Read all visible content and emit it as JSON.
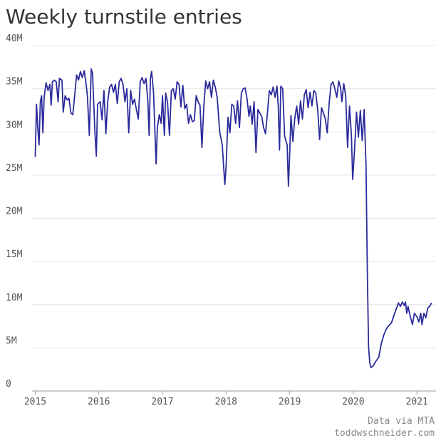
{
  "chart_data": {
    "type": "line",
    "title": "Weekly turnstile entries",
    "annotations": [
      "Data via MTA",
      "toddwschneider.com"
    ],
    "color": "#2b2b9c",
    "xlim": [
      2014.95,
      2021.3
    ],
    "xticks": [
      2015,
      2016,
      2017,
      2018,
      2019,
      2020,
      2021
    ],
    "ylim": [
      0,
      40000000
    ],
    "yticks": [
      0,
      {
        "value": 5000000,
        "label": "5M"
      },
      {
        "value": 10000000,
        "label": "10M"
      },
      {
        "value": 15000000,
        "label": "15M"
      },
      {
        "value": 20000000,
        "label": "20M"
      },
      {
        "value": 25000000,
        "label": "25M"
      },
      {
        "value": 30000000,
        "label": "30M"
      },
      {
        "value": 35000000,
        "label": "35M"
      },
      {
        "value": 40000000,
        "label": "40M"
      }
    ],
    "grid": true,
    "x": [
      2015.0,
      2015.02,
      2015.04,
      2015.06,
      2015.08,
      2015.1,
      2015.12,
      2015.14,
      2015.17,
      2015.2,
      2015.23,
      2015.25,
      2015.27,
      2015.3,
      2015.33,
      2015.36,
      2015.38,
      2015.42,
      2015.44,
      2015.47,
      2015.5,
      2015.53,
      2015.56,
      2015.59,
      2015.62,
      2015.65,
      2015.68,
      2015.71,
      2015.74,
      2015.77,
      2015.8,
      2015.82,
      2015.85,
      2015.88,
      2015.9,
      2015.94,
      2015.96,
      2015.98,
      2016.02,
      2016.05,
      2016.08,
      2016.11,
      2016.14,
      2016.17,
      2016.2,
      2016.23,
      2016.26,
      2016.29,
      2016.32,
      2016.35,
      2016.38,
      2016.41,
      2016.44,
      2016.47,
      2016.5,
      2016.53,
      2016.56,
      2016.59,
      2016.62,
      2016.65,
      2016.68,
      2016.71,
      2016.74,
      2016.77,
      2016.79,
      2016.81,
      2016.83,
      2016.86,
      2016.9,
      2016.92,
      2016.95,
      2016.98,
      2017.0,
      2017.03,
      2017.05,
      2017.08,
      2017.11,
      2017.14,
      2017.17,
      2017.2,
      2017.23,
      2017.26,
      2017.29,
      2017.32,
      2017.35,
      2017.38,
      2017.41,
      2017.44,
      2017.47,
      2017.5,
      2017.53,
      2017.56,
      2017.59,
      2017.62,
      2017.65,
      2017.68,
      2017.71,
      2017.74,
      2017.77,
      2017.8,
      2017.83,
      2017.86,
      2017.9,
      2017.94,
      2017.98,
      2018.0,
      2018.03,
      2018.06,
      2018.09,
      2018.12,
      2018.15,
      2018.18,
      2018.21,
      2018.24,
      2018.27,
      2018.3,
      2018.33,
      2018.36,
      2018.38,
      2018.41,
      2018.44,
      2018.47,
      2018.5,
      2018.53,
      2018.56,
      2018.59,
      2018.62,
      2018.65,
      2018.68,
      2018.71,
      2018.74,
      2018.77,
      2018.8,
      2018.82,
      2018.84,
      2018.86,
      2018.89,
      2018.92,
      2018.96,
      2018.98,
      2019.0,
      2019.02,
      2019.05,
      2019.08,
      2019.11,
      2019.14,
      2019.17,
      2019.2,
      2019.23,
      2019.26,
      2019.29,
      2019.32,
      2019.35,
      2019.38,
      2019.41,
      2019.44,
      2019.47,
      2019.5,
      2019.53,
      2019.56,
      2019.59,
      2019.62,
      2019.65,
      2019.68,
      2019.71,
      2019.74,
      2019.77,
      2019.8,
      2019.82,
      2019.85,
      2019.88,
      2019.91,
      2019.94,
      2019.97,
      2019.99,
      2020.02,
      2020.05,
      2020.08,
      2020.11,
      2020.14,
      2020.17,
      2020.2,
      2020.22,
      2020.24,
      2020.26,
      2020.28,
      2020.31,
      2020.35,
      2020.4,
      2020.44,
      2020.48,
      2020.52,
      2020.56,
      2020.6,
      2020.64,
      2020.68,
      2020.71,
      2020.74,
      2020.77,
      2020.8,
      2020.82,
      2020.84,
      2020.86,
      2020.9,
      2020.93,
      2020.96,
      2021.0,
      2021.03,
      2021.06,
      2021.08,
      2021.11,
      2021.14,
      2021.17,
      2021.2,
      2021.23
    ],
    "values": [
      27100000,
      33200000,
      30500000,
      28500000,
      33500000,
      34200000,
      29900000,
      34000000,
      35700000,
      34800000,
      35500000,
      33100000,
      35800000,
      36000000,
      35800000,
      33500000,
      36200000,
      36000000,
      32300000,
      34200000,
      33700000,
      33900000,
      32200000,
      32000000,
      34200000,
      36600000,
      36000000,
      37000000,
      36300000,
      37100000,
      35500000,
      34200000,
      29600000,
      37300000,
      36800000,
      29700000,
      27200000,
      33200000,
      33500000,
      31400000,
      34800000,
      29800000,
      33600000,
      35200000,
      35500000,
      34600000,
      35500000,
      33300000,
      35800000,
      36200000,
      35500000,
      33500000,
      35000000,
      29900000,
      34800000,
      33200000,
      33800000,
      32600000,
      31500000,
      35800000,
      36300000,
      35600000,
      36200000,
      33600000,
      29600000,
      36200000,
      37000000,
      34500000,
      26300000,
      30500000,
      32000000,
      31000000,
      34200000,
      29600000,
      34500000,
      33400000,
      29600000,
      34800000,
      35000000,
      33800000,
      35800000,
      35500000,
      32900000,
      35400000,
      32700000,
      33200000,
      31000000,
      32000000,
      31200000,
      31300000,
      34200000,
      33500000,
      33100000,
      28200000,
      33000000,
      35900000,
      35000000,
      35800000,
      34000000,
      36000000,
      35200000,
      34000000,
      30000000,
      28500000,
      23900000,
      26000000,
      31700000,
      29900000,
      33200000,
      33000000,
      31000000,
      33600000,
      30500000,
      34500000,
      35000000,
      35100000,
      33800000,
      31800000,
      33000000,
      30900000,
      33500000,
      27600000,
      32600000,
      32200000,
      31800000,
      30500000,
      29800000,
      32200000,
      34800000,
      34300000,
      35200000,
      34000000,
      35300000,
      33000000,
      27900000,
      35300000,
      35000000,
      29500000,
      28500000,
      23700000,
      27500000,
      31900000,
      28900000,
      31600000,
      33000000,
      30900000,
      33600000,
      31500000,
      34300000,
      34900000,
      32800000,
      34600000,
      33000000,
      34800000,
      34500000,
      32600000,
      29100000,
      32800000,
      32200000,
      31500000,
      29900000,
      33300000,
      35500000,
      35800000,
      35000000,
      34000000,
      35900000,
      35100000,
      33500000,
      35600000,
      34200000,
      28200000,
      33000000,
      29600000,
      24500000,
      28000000,
      32300000,
      29400000,
      32500000,
      29000000,
      32600000,
      26000000,
      14000000,
      5000000,
      3200000,
      2700000,
      2900000,
      3400000,
      3900000,
      5500000,
      6500000,
      7200000,
      7600000,
      7900000,
      8800000,
      9600000,
      10200000,
      9800000,
      10300000,
      9900000,
      10300000,
      9000000,
      9800000,
      8500000,
      7700000,
      9000000,
      8600000,
      8000000,
      9000000,
      7700000,
      9000000,
      8500000,
      9600000,
      9800000,
      10200000
    ]
  }
}
